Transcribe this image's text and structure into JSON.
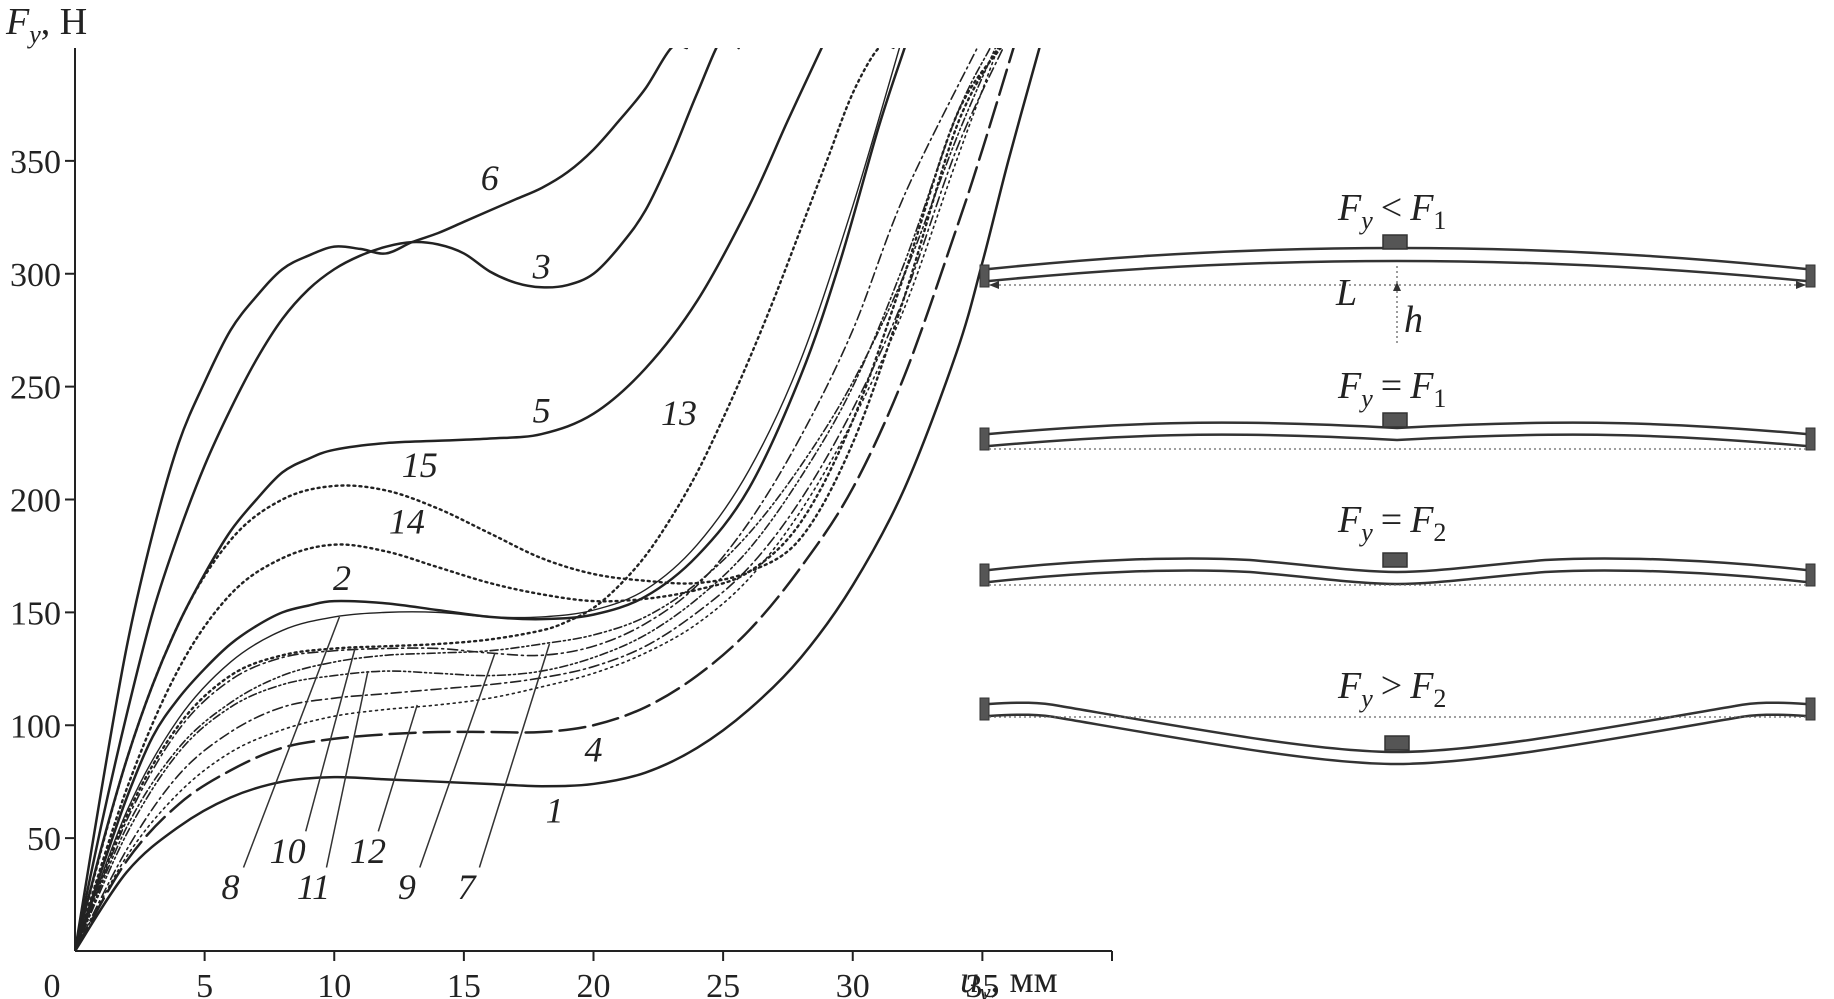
{
  "chart_data": {
    "type": "line",
    "ylabel": "F",
    "ylabel_sub": "y",
    "ylabel_unit": ", Н",
    "xlabel": "u",
    "xlabel_sub": "y",
    "xlabel_unit": ", мм",
    "xlim": [
      0,
      40
    ],
    "ylim": [
      0,
      400
    ],
    "xticks": [
      0,
      5,
      10,
      15,
      20,
      25,
      30,
      35,
      40
    ],
    "xticklabels": [
      "0",
      "5",
      "10",
      "15",
      "20",
      "25",
      "30",
      "35",
      ""
    ],
    "yticks": [
      50,
      100,
      150,
      200,
      250,
      300,
      350
    ],
    "yticklabels": [
      "50",
      "100",
      "150",
      "200",
      "250",
      "300",
      "350"
    ],
    "series": [
      {
        "name": "1",
        "style": "solid",
        "width": 2.5,
        "x": [
          0,
          2,
          4,
          6,
          8,
          10,
          12,
          14,
          16,
          18,
          20,
          22,
          24,
          26,
          28,
          30,
          32,
          34,
          35,
          36,
          37.2
        ],
        "y": [
          0,
          35,
          55,
          68,
          75,
          77,
          76,
          75,
          74,
          73,
          74,
          79,
          90,
          107,
          130,
          162,
          205,
          265,
          305,
          350,
          400
        ]
      },
      {
        "name": "2",
        "style": "solid",
        "width": 2.5,
        "x": [
          0,
          1,
          2,
          3,
          4,
          5,
          6,
          7,
          8,
          9,
          10,
          12,
          14,
          16,
          18,
          20,
          22,
          24,
          26,
          28,
          29.5,
          31,
          32
        ],
        "y": [
          0,
          35,
          68,
          95,
          112,
          125,
          136,
          144,
          150,
          153,
          155,
          154,
          151,
          148,
          147,
          149,
          157,
          175,
          205,
          255,
          305,
          365,
          400
        ]
      },
      {
        "name": "3",
        "style": "solid",
        "width": 2.5,
        "x": [
          0,
          1,
          2,
          3,
          4,
          5,
          6,
          7,
          8,
          9,
          10,
          11,
          12,
          13,
          14,
          15,
          16,
          17,
          18,
          19,
          20,
          21,
          22,
          23,
          24,
          25,
          25.6
        ],
        "y": [
          0,
          55,
          105,
          150,
          185,
          215,
          240,
          262,
          280,
          293,
          302,
          308,
          312,
          314,
          313,
          309,
          301,
          296,
          294,
          295,
          300,
          312,
          328,
          352,
          380,
          405,
          400
        ]
      },
      {
        "name": "4",
        "style": "longdash",
        "width": 2.5,
        "x": [
          0,
          2,
          4,
          6,
          8,
          10,
          12,
          14,
          16,
          18,
          20,
          22,
          24,
          26,
          28,
          30,
          32,
          34,
          35,
          36.2
        ],
        "y": [
          0,
          40,
          65,
          80,
          90,
          94,
          96,
          97,
          97,
          97,
          100,
          108,
          122,
          142,
          170,
          205,
          255,
          320,
          355,
          400
        ]
      },
      {
        "name": "5",
        "style": "solid",
        "width": 2.5,
        "x": [
          0,
          1,
          2,
          3,
          4,
          5,
          6,
          7,
          8,
          9,
          10,
          12,
          14,
          16,
          18,
          20,
          22,
          24,
          26,
          27.5,
          28.8
        ],
        "y": [
          0,
          45,
          85,
          118,
          145,
          167,
          186,
          200,
          212,
          218,
          222,
          225,
          226,
          227,
          229,
          238,
          258,
          288,
          330,
          368,
          400
        ]
      },
      {
        "name": "6",
        "style": "solid",
        "width": 2.5,
        "x": [
          0,
          1,
          2,
          3,
          4,
          5,
          6,
          7,
          8,
          9,
          10,
          11,
          12,
          13,
          14,
          15,
          16,
          17,
          18,
          19,
          20,
          21,
          22,
          23,
          23.6
        ],
        "y": [
          0,
          70,
          135,
          185,
          225,
          252,
          275,
          290,
          302,
          308,
          312,
          311,
          309,
          314,
          318,
          323,
          328,
          333,
          338,
          345,
          355,
          368,
          382,
          400,
          400
        ]
      },
      {
        "name": "7",
        "style": "dashdotdot",
        "width": 1.6,
        "x": [
          0,
          2,
          4,
          6,
          8,
          10,
          12,
          14,
          16,
          18,
          20,
          22,
          24,
          26,
          28,
          30,
          32,
          34,
          35.5
        ],
        "y": [
          0,
          55,
          90,
          110,
          122,
          128,
          131,
          132,
          133,
          136,
          140,
          148,
          163,
          185,
          215,
          252,
          300,
          360,
          400
        ]
      },
      {
        "name": "8",
        "style": "solid",
        "width": 1.4,
        "x": [
          0,
          2,
          4,
          6,
          8,
          10,
          12,
          14,
          16,
          18,
          20,
          22,
          24,
          26,
          28,
          30,
          31.8
        ],
        "y": [
          0,
          62,
          103,
          128,
          142,
          148,
          150,
          150,
          148,
          148,
          151,
          160,
          180,
          213,
          262,
          330,
          400
        ]
      },
      {
        "name": "9",
        "style": "dotted",
        "width": 1.6,
        "x": [
          0,
          2,
          4,
          6,
          8,
          10,
          12,
          14,
          16,
          18,
          20,
          22,
          24,
          26,
          28,
          30,
          32,
          34,
          35.6
        ],
        "y": [
          0,
          42,
          70,
          88,
          98,
          104,
          107,
          109,
          112,
          117,
          123,
          132,
          145,
          165,
          195,
          235,
          285,
          350,
          400
        ]
      },
      {
        "name": "10",
        "style": "dashdot",
        "width": 1.6,
        "x": [
          0,
          2,
          4,
          6,
          8,
          10,
          12,
          14,
          16,
          18,
          20,
          22,
          24,
          26,
          28,
          30,
          32,
          34.8
        ],
        "y": [
          0,
          58,
          98,
          120,
          130,
          133,
          134,
          134,
          132,
          131,
          135,
          145,
          162,
          190,
          228,
          275,
          335,
          400
        ]
      },
      {
        "name": "11",
        "style": "dashdotdot",
        "width": 1.6,
        "x": [
          0,
          2,
          4,
          6,
          8,
          10,
          12,
          14,
          16,
          18,
          20,
          22,
          24,
          26,
          28,
          30,
          32,
          34,
          35.3
        ],
        "y": [
          0,
          52,
          88,
          108,
          118,
          122,
          124,
          123,
          122,
          124,
          130,
          140,
          156,
          178,
          210,
          250,
          305,
          370,
          400
        ]
      },
      {
        "name": "12",
        "style": "dashdot",
        "width": 1.6,
        "x": [
          0,
          2,
          4,
          6,
          8,
          10,
          12,
          14,
          16,
          18,
          20,
          22,
          24,
          26,
          28,
          30,
          32,
          34,
          35.8
        ],
        "y": [
          0,
          45,
          78,
          97,
          108,
          112,
          114,
          116,
          118,
          121,
          126,
          135,
          150,
          170,
          200,
          240,
          290,
          355,
          400
        ]
      },
      {
        "name": "13",
        "style": "dotted",
        "width": 2.4,
        "x": [
          0,
          2,
          4,
          6,
          8,
          10,
          12,
          14,
          16,
          18,
          19,
          20,
          21,
          22,
          23,
          24,
          25,
          26,
          27,
          28,
          29,
          30,
          31,
          31.6
        ],
        "y": [
          0,
          60,
          100,
          122,
          131,
          134,
          135,
          136,
          138,
          142,
          146,
          152,
          162,
          175,
          192,
          212,
          236,
          262,
          290,
          320,
          350,
          380,
          400,
          400
        ]
      },
      {
        "name": "14",
        "style": "dotted",
        "width": 2.4,
        "x": [
          0,
          2,
          4,
          6,
          8,
          10,
          12,
          14,
          16,
          18,
          20,
          22,
          24,
          26,
          28,
          30,
          32,
          34,
          35.7
        ],
        "y": [
          0,
          72,
          125,
          158,
          174,
          180,
          177,
          170,
          163,
          158,
          155,
          156,
          160,
          168,
          190,
          235,
          300,
          370,
          400
        ]
      },
      {
        "name": "15",
        "style": "dotted",
        "width": 2.4,
        "x": [
          0,
          2,
          4,
          6,
          8,
          10,
          12,
          14,
          16,
          18,
          20,
          22,
          24,
          26,
          28,
          30,
          32,
          34,
          35.6
        ],
        "y": [
          0,
          85,
          145,
          182,
          200,
          206,
          204,
          196,
          185,
          174,
          167,
          164,
          163,
          168,
          183,
          225,
          290,
          365,
          400
        ]
      }
    ],
    "curve_labels": [
      {
        "text": "6",
        "x": 16.0,
        "y": 337
      },
      {
        "text": "3",
        "x": 18.0,
        "y": 298
      },
      {
        "text": "5",
        "x": 18.0,
        "y": 234
      },
      {
        "text": "13",
        "x": 23.3,
        "y": 233
      },
      {
        "text": "15",
        "x": 13.3,
        "y": 210
      },
      {
        "text": "14",
        "x": 12.8,
        "y": 185
      },
      {
        "text": "2",
        "x": 10.3,
        "y": 160
      },
      {
        "text": "4",
        "x": 20.0,
        "y": 84
      },
      {
        "text": "1",
        "x": 18.5,
        "y": 57
      },
      {
        "text": "8",
        "x": 6.0,
        "y": 23
      },
      {
        "text": "10",
        "x": 8.2,
        "y": 39
      },
      {
        "text": "11",
        "x": 9.2,
        "y": 23
      },
      {
        "text": "12",
        "x": 11.3,
        "y": 39
      },
      {
        "text": "9",
        "x": 12.8,
        "y": 23
      },
      {
        "text": "7",
        "x": 15.1,
        "y": 23
      }
    ],
    "leaders": [
      {
        "from": [
          6.5,
          37
        ],
        "to": [
          10.2,
          148
        ]
      },
      {
        "from": [
          8.9,
          53
        ],
        "to": [
          10.8,
          134
        ]
      },
      {
        "from": [
          9.7,
          37
        ],
        "to": [
          11.3,
          124
        ]
      },
      {
        "from": [
          11.7,
          53
        ],
        "to": [
          13.2,
          109
        ]
      },
      {
        "from": [
          13.3,
          37
        ],
        "to": [
          16.2,
          132
        ]
      },
      {
        "from": [
          15.6,
          37
        ],
        "to": [
          18.3,
          136
        ]
      }
    ]
  },
  "diagram": {
    "panels": [
      {
        "F": "F",
        "sub": "y",
        "rel": "<",
        "F2": "F",
        "sub2": "1"
      },
      {
        "F": "F",
        "sub": "y",
        "rel": "=",
        "F2": "F",
        "sub2": "1"
      },
      {
        "F": "F",
        "sub": "y",
        "rel": "=",
        "F2": "F",
        "sub2": "2"
      },
      {
        "F": "F",
        "sub": "y",
        "rel": ">",
        "F2": "F",
        "sub2": "2"
      }
    ],
    "L_label": "L",
    "h_label": "h"
  }
}
